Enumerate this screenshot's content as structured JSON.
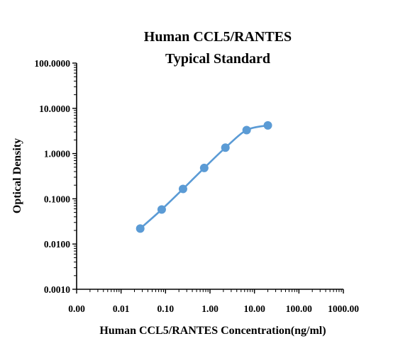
{
  "chart_data": {
    "type": "scatter",
    "title": [
      "Human CCL5/RANTES",
      "Typical Standard"
    ],
    "xlabel": "Human CCL5/RANTES Concentration(ng/ml)",
    "ylabel": "Optical Density",
    "x_scale": "log",
    "y_scale": "log",
    "xlim": [
      0.001,
      1000
    ],
    "ylim": [
      0.001,
      100
    ],
    "x_tick_values": [
      0.001,
      0.01,
      0.1,
      1,
      10,
      100,
      1000
    ],
    "x_tick_labels": [
      "0.00",
      "0.01",
      "0.10",
      "1.00",
      "10.00",
      "100.00",
      "1000.00"
    ],
    "y_tick_values": [
      0.001,
      0.01,
      0.1,
      1,
      10,
      100
    ],
    "y_tick_labels": [
      "0.0010",
      "0.0100",
      "0.1000",
      "1.0000",
      "10.0000",
      "100.0000"
    ],
    "grid": false,
    "legend": "none",
    "series": [
      {
        "x": [
          0.027,
          0.082,
          0.247,
          0.741,
          2.22,
          6.67,
          20.0
        ],
        "y": [
          0.022,
          0.058,
          0.165,
          0.48,
          1.35,
          3.3,
          4.2
        ],
        "color": "#5b9bd5"
      }
    ]
  }
}
